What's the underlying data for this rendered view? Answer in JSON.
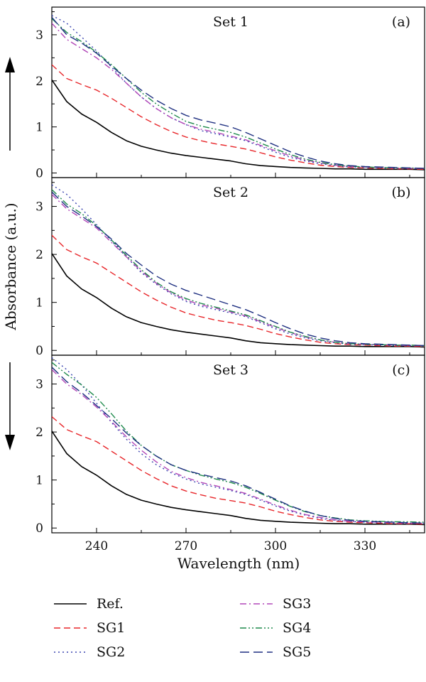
{
  "chart_data": {
    "type": "line",
    "xlabel": "Wavelength (nm)",
    "ylabel": "Absorbance (a.u.)",
    "xlim": [
      225,
      350
    ],
    "ylim": [
      -0.1,
      3.6
    ],
    "x_ticks": [
      240,
      270,
      300,
      330
    ],
    "y_ticks": [
      0,
      1,
      2,
      3
    ],
    "x": [
      225,
      230,
      235,
      240,
      245,
      250,
      255,
      260,
      265,
      270,
      275,
      280,
      285,
      290,
      295,
      300,
      305,
      310,
      315,
      320,
      325,
      330,
      335,
      340,
      345,
      350
    ],
    "legend": {
      "placement": "bottom",
      "entries": [
        {
          "label": "Ref.",
          "color": "#000000",
          "dash": "solid"
        },
        {
          "label": "SG1",
          "color": "#e8262a",
          "dash": "dashed"
        },
        {
          "label": "SG2",
          "color": "#3a44b0",
          "dash": "dotted"
        },
        {
          "label": "SG3",
          "color": "#b146b8",
          "dash": "dashdot"
        },
        {
          "label": "SG4",
          "color": "#1f8a4c",
          "dash": "dashdotdot"
        },
        {
          "label": "SG5",
          "color": "#1e2f80",
          "dash": "longdash"
        }
      ]
    },
    "panels": [
      {
        "title": "Set 1",
        "letter": "(a)",
        "arrow": "up",
        "series": [
          {
            "name": "Ref.",
            "values": [
              2.02,
              1.55,
              1.28,
              1.1,
              0.88,
              0.7,
              0.58,
              0.5,
              0.43,
              0.38,
              0.34,
              0.3,
              0.26,
              0.2,
              0.16,
              0.14,
              0.12,
              0.11,
              0.1,
              0.09,
              0.09,
              0.08,
              0.08,
              0.08,
              0.08,
              0.07
            ]
          },
          {
            "name": "SG1",
            "values": [
              2.35,
              2.05,
              1.92,
              1.8,
              1.62,
              1.42,
              1.22,
              1.05,
              0.9,
              0.78,
              0.7,
              0.63,
              0.58,
              0.52,
              0.44,
              0.35,
              0.28,
              0.22,
              0.17,
              0.14,
              0.12,
              0.11,
              0.1,
              0.09,
              0.09,
              0.08
            ]
          },
          {
            "name": "SG2",
            "values": [
              3.42,
              3.25,
              2.95,
              2.65,
              2.3,
              1.95,
              1.65,
              1.4,
              1.2,
              1.05,
              0.92,
              0.85,
              0.78,
              0.7,
              0.58,
              0.45,
              0.34,
              0.26,
              0.2,
              0.16,
              0.13,
              0.12,
              0.11,
              0.1,
              0.1,
              0.1
            ]
          },
          {
            "name": "SG3",
            "values": [
              3.25,
              2.9,
              2.7,
              2.5,
              2.25,
              1.95,
              1.65,
              1.4,
              1.2,
              1.05,
              0.95,
              0.88,
              0.8,
              0.72,
              0.6,
              0.48,
              0.37,
              0.28,
              0.22,
              0.17,
              0.14,
              0.13,
              0.12,
              0.11,
              0.1,
              0.1
            ]
          },
          {
            "name": "SG4",
            "values": [
              3.35,
              3.05,
              2.85,
              2.62,
              2.35,
              2.05,
              1.75,
              1.5,
              1.3,
              1.12,
              1.02,
              0.95,
              0.88,
              0.78,
              0.65,
              0.52,
              0.4,
              0.3,
              0.23,
              0.18,
              0.15,
              0.13,
              0.12,
              0.11,
              0.11,
              0.1
            ]
          },
          {
            "name": "SG5",
            "values": [
              3.38,
              3.0,
              2.82,
              2.6,
              2.32,
              2.05,
              1.8,
              1.58,
              1.4,
              1.25,
              1.15,
              1.08,
              1.0,
              0.88,
              0.74,
              0.6,
              0.46,
              0.35,
              0.26,
              0.2,
              0.16,
              0.14,
              0.13,
              0.12,
              0.11,
              0.1
            ]
          }
        ]
      },
      {
        "title": "Set 2",
        "letter": "(b)",
        "arrow": "none",
        "series": [
          {
            "name": "Ref.",
            "values": [
              2.02,
              1.55,
              1.28,
              1.1,
              0.88,
              0.7,
              0.58,
              0.5,
              0.43,
              0.38,
              0.34,
              0.3,
              0.26,
              0.2,
              0.16,
              0.14,
              0.12,
              0.11,
              0.1,
              0.09,
              0.09,
              0.08,
              0.08,
              0.08,
              0.08,
              0.07
            ]
          },
          {
            "name": "SG1",
            "values": [
              2.4,
              2.1,
              1.95,
              1.82,
              1.62,
              1.42,
              1.22,
              1.05,
              0.9,
              0.78,
              0.7,
              0.63,
              0.58,
              0.52,
              0.44,
              0.35,
              0.28,
              0.22,
              0.17,
              0.14,
              0.12,
              0.11,
              0.1,
              0.09,
              0.09,
              0.08
            ]
          },
          {
            "name": "SG2",
            "values": [
              3.45,
              3.25,
              2.95,
              2.62,
              2.28,
              1.95,
              1.62,
              1.38,
              1.18,
              1.02,
              0.92,
              0.85,
              0.78,
              0.7,
              0.58,
              0.45,
              0.34,
              0.26,
              0.2,
              0.16,
              0.13,
              0.12,
              0.11,
              0.1,
              0.1,
              0.1
            ]
          },
          {
            "name": "SG3",
            "values": [
              3.25,
              2.95,
              2.75,
              2.55,
              2.25,
              1.95,
              1.65,
              1.4,
              1.2,
              1.05,
              0.95,
              0.88,
              0.8,
              0.72,
              0.6,
              0.48,
              0.37,
              0.28,
              0.22,
              0.17,
              0.14,
              0.13,
              0.12,
              0.11,
              0.1,
              0.1
            ]
          },
          {
            "name": "SG4",
            "values": [
              3.35,
              3.05,
              2.85,
              2.6,
              2.3,
              1.98,
              1.68,
              1.42,
              1.22,
              1.08,
              0.98,
              0.9,
              0.82,
              0.74,
              0.62,
              0.5,
              0.38,
              0.29,
              0.22,
              0.17,
              0.14,
              0.13,
              0.12,
              0.11,
              0.11,
              0.1
            ]
          },
          {
            "name": "SG5",
            "values": [
              3.3,
              3.0,
              2.8,
              2.58,
              2.32,
              2.02,
              1.78,
              1.55,
              1.38,
              1.25,
              1.15,
              1.05,
              0.95,
              0.85,
              0.72,
              0.58,
              0.45,
              0.34,
              0.26,
              0.2,
              0.16,
              0.14,
              0.13,
              0.12,
              0.11,
              0.1
            ]
          }
        ]
      },
      {
        "title": "Set 3",
        "letter": "(c)",
        "arrow": "down",
        "series": [
          {
            "name": "Ref.",
            "values": [
              2.02,
              1.55,
              1.28,
              1.1,
              0.88,
              0.7,
              0.58,
              0.5,
              0.43,
              0.38,
              0.34,
              0.3,
              0.26,
              0.2,
              0.16,
              0.14,
              0.12,
              0.11,
              0.1,
              0.09,
              0.09,
              0.08,
              0.08,
              0.08,
              0.08,
              0.07
            ]
          },
          {
            "name": "SG1",
            "values": [
              2.32,
              2.05,
              1.92,
              1.8,
              1.6,
              1.4,
              1.2,
              1.03,
              0.88,
              0.77,
              0.69,
              0.62,
              0.57,
              0.52,
              0.44,
              0.35,
              0.28,
              0.22,
              0.17,
              0.14,
              0.12,
              0.11,
              0.1,
              0.09,
              0.09,
              0.08
            ]
          },
          {
            "name": "SG2",
            "values": [
              3.55,
              3.3,
              2.98,
              2.6,
              2.2,
              1.85,
              1.55,
              1.32,
              1.15,
              1.02,
              0.92,
              0.85,
              0.78,
              0.7,
              0.58,
              0.46,
              0.35,
              0.27,
              0.2,
              0.16,
              0.14,
              0.12,
              0.11,
              0.1,
              0.1,
              0.1
            ]
          },
          {
            "name": "SG3",
            "values": [
              3.3,
              3.0,
              2.78,
              2.52,
              2.22,
              1.9,
              1.62,
              1.38,
              1.18,
              1.05,
              0.95,
              0.88,
              0.8,
              0.72,
              0.6,
              0.48,
              0.37,
              0.28,
              0.22,
              0.17,
              0.14,
              0.13,
              0.12,
              0.11,
              0.1,
              0.1
            ]
          },
          {
            "name": "SG4",
            "values": [
              3.45,
              3.2,
              2.98,
              2.72,
              2.38,
              2.02,
              1.72,
              1.5,
              1.32,
              1.2,
              1.1,
              1.02,
              0.95,
              0.85,
              0.72,
              0.58,
              0.45,
              0.34,
              0.26,
              0.21,
              0.17,
              0.15,
              0.14,
              0.13,
              0.13,
              0.12
            ]
          },
          {
            "name": "SG5",
            "values": [
              3.35,
              3.05,
              2.82,
              2.55,
              2.28,
              1.98,
              1.72,
              1.5,
              1.32,
              1.2,
              1.12,
              1.05,
              0.98,
              0.88,
              0.74,
              0.6,
              0.46,
              0.35,
              0.26,
              0.2,
              0.16,
              0.14,
              0.13,
              0.12,
              0.11,
              0.1
            ]
          }
        ]
      }
    ]
  }
}
